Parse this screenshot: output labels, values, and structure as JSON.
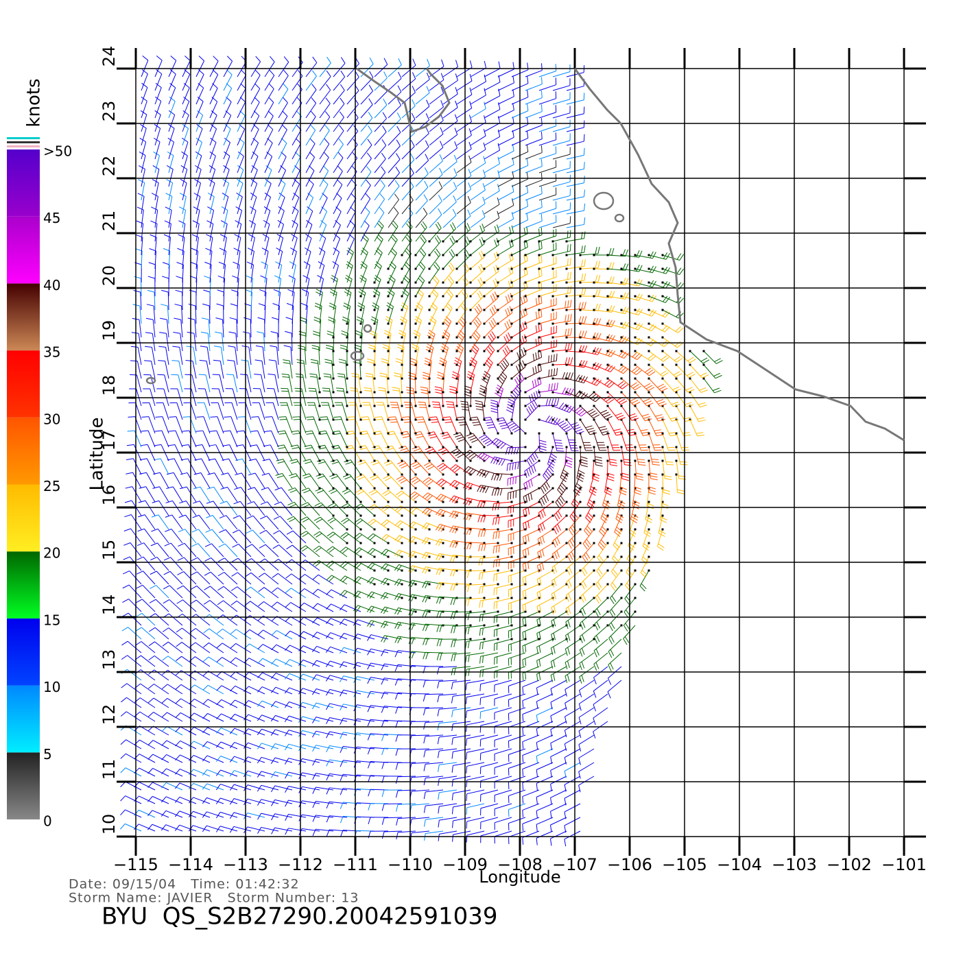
{
  "chart_data": {
    "type": "map",
    "xlabel": "Longitude",
    "ylabel": "Latitude",
    "xlim": [
      -115,
      -101
    ],
    "ylim": [
      10,
      24
    ],
    "xticks": [
      {
        "value": -115,
        "label": "−115"
      },
      {
        "value": -114,
        "label": "−114"
      },
      {
        "value": -113,
        "label": "−113"
      },
      {
        "value": -112,
        "label": "−112"
      },
      {
        "value": -111,
        "label": "−111"
      },
      {
        "value": -110,
        "label": "−110"
      },
      {
        "value": -109,
        "label": "−109"
      },
      {
        "value": -108,
        "label": "−108"
      },
      {
        "value": -107,
        "label": "−107"
      },
      {
        "value": -106,
        "label": "−106"
      },
      {
        "value": -105,
        "label": "−105"
      },
      {
        "value": -104,
        "label": "−104"
      },
      {
        "value": -103,
        "label": "−103"
      },
      {
        "value": -102,
        "label": "−102"
      },
      {
        "value": -101,
        "label": "−101"
      }
    ],
    "yticks": [
      10,
      11,
      12,
      13,
      14,
      15,
      16,
      17,
      18,
      19,
      20,
      21,
      22,
      23,
      24
    ],
    "grid": true,
    "colorbar": {
      "label": "knots",
      "lim": [
        0,
        50
      ],
      "ticks": [
        0,
        5,
        10,
        15,
        20,
        25,
        30,
        35,
        40,
        45,
        {
          "value": 50,
          "label": ">50"
        }
      ],
      "colors": [
        [
          "#888888",
          "#222222"
        ],
        [
          "#00eeff",
          "#0088ff"
        ],
        [
          "#0044ff",
          "#0000ee"
        ],
        [
          "#00ff22",
          "#006600"
        ],
        [
          "#ffee22",
          "#ffbb00"
        ],
        [
          "#ff9900",
          "#ff5500"
        ],
        [
          "#ff3300",
          "#ff0000"
        ],
        [
          "#cc8855",
          "#440000"
        ],
        [
          "#ff00ff",
          "#aa00cc"
        ],
        [
          "#9900cc",
          "#5500cc"
        ]
      ]
    },
    "info": [
      "Date: 09/15/04   Time: 01:42:32",
      "Storm Name: JAVIER   Storm Number: 13"
    ],
    "title": "BYU  QS_S2B27290.20042591039"
  }
}
